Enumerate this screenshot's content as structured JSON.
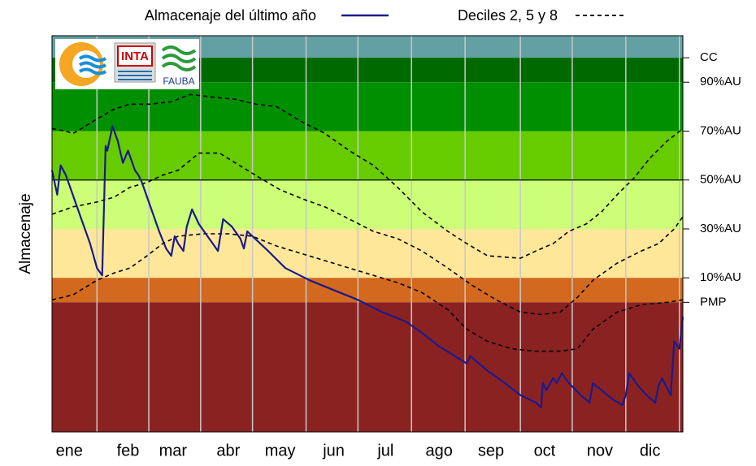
{
  "chart_data": {
    "type": "line",
    "ylabel": "Almacenaje",
    "xlim": [
      0,
      365
    ],
    "ylim": [
      -53,
      109
    ],
    "xticks": [
      {
        "value": 10,
        "label": "ene"
      },
      {
        "value": 44,
        "label": "feb"
      },
      {
        "value": 70,
        "label": "mar"
      },
      {
        "value": 102,
        "label": "abr"
      },
      {
        "value": 132,
        "label": "may"
      },
      {
        "value": 163,
        "label": "jun"
      },
      {
        "value": 193,
        "label": "jul"
      },
      {
        "value": 224,
        "label": "ago"
      },
      {
        "value": 254,
        "label": "sep"
      },
      {
        "value": 285,
        "label": "oct"
      },
      {
        "value": 317,
        "label": "nov"
      },
      {
        "value": 346,
        "label": "dic"
      }
    ],
    "xgrid": [
      26,
      56,
      86,
      116,
      147,
      177,
      208,
      239,
      271,
      301,
      332,
      363
    ],
    "yticks": [
      {
        "value": 100,
        "label": "CC"
      },
      {
        "value": 90,
        "label": "90%AU"
      },
      {
        "value": 70,
        "label": "70%AU"
      },
      {
        "value": 50,
        "label": "50%AU"
      },
      {
        "value": 30,
        "label": "30%AU"
      },
      {
        "value": 10,
        "label": "10%AU"
      },
      {
        "value": 0,
        "label": "PMP"
      }
    ],
    "reference_line": 50,
    "bands": [
      {
        "from": 100,
        "to": 109,
        "color": "#62a0a4"
      },
      {
        "from": 90,
        "to": 100,
        "color": "#006a00"
      },
      {
        "from": 70,
        "to": 90,
        "color": "#008f00"
      },
      {
        "from": 50,
        "to": 70,
        "color": "#66cc00"
      },
      {
        "from": 30,
        "to": 50,
        "color": "#ccff77"
      },
      {
        "from": 10,
        "to": 30,
        "color": "#ffe79a"
      },
      {
        "from": 0,
        "to": 10,
        "color": "#d2691e"
      },
      {
        "from": -53,
        "to": 0,
        "color": "#8b2222"
      }
    ],
    "logos": [
      "INTA",
      "FAUBA"
    ],
    "series": [
      {
        "name": "Almacenaje del último año",
        "color": "#1a1a8c",
        "x": [
          0,
          3,
          5,
          8,
          12,
          17,
          22,
          26,
          29,
          31,
          32,
          35,
          38,
          41,
          44,
          48,
          50,
          52,
          57,
          62,
          66,
          69,
          71,
          73,
          76,
          78,
          81,
          85,
          90,
          93,
          96,
          99,
          104,
          109,
          111,
          113,
          125,
          135,
          149,
          163,
          177,
          191,
          205,
          215,
          224,
          233,
          240,
          242,
          252,
          262,
          271,
          280,
          283,
          284,
          286,
          290,
          292,
          295,
          299,
          306,
          311,
          313,
          318,
          325,
          330,
          332,
          334,
          339,
          344,
          349,
          351,
          353,
          358,
          360,
          363,
          365
        ],
        "values": [
          54,
          44,
          56,
          52,
          44,
          34,
          24,
          14,
          11,
          64,
          62,
          72,
          66,
          57,
          62,
          54,
          52,
          49,
          39,
          29,
          22,
          19,
          27,
          24,
          21,
          31,
          38,
          32,
          27,
          24,
          21,
          34,
          31,
          26,
          22,
          29,
          21,
          14,
          9,
          5,
          1,
          -4,
          -8,
          -13,
          -18,
          -22,
          -25,
          -22,
          -28,
          -33,
          -38,
          -41,
          -43,
          -33,
          -36,
          -31,
          -33,
          -29,
          -33,
          -38,
          -41,
          -33,
          -36,
          -40,
          -42,
          -38,
          -29,
          -34,
          -38,
          -41,
          -34,
          -31,
          -38,
          -16,
          -19,
          -6
        ]
      }
    ],
    "deciles": {
      "name": "Deciles 2, 5 y 8",
      "color": "#000000",
      "lines": [
        {
          "x": [
            0,
            8,
            12,
            17,
            26,
            36,
            45,
            57,
            69,
            80,
            92,
            106,
            118,
            130,
            144,
            158,
            172,
            186,
            200,
            214,
            229,
            240,
            252,
            271,
            280,
            290,
            299,
            309,
            318,
            327,
            337,
            346,
            356,
            365
          ],
          "values": [
            71,
            70,
            69,
            71,
            75,
            79,
            81,
            81,
            82,
            85,
            84,
            83,
            81,
            80,
            74,
            69,
            62,
            56,
            47,
            37,
            29,
            24,
            19,
            18,
            21,
            24,
            29,
            32,
            37,
            44,
            51,
            59,
            66,
            71
          ]
        },
        {
          "x": [
            0,
            12,
            26,
            36,
            45,
            55,
            64,
            73,
            85,
            97,
            106,
            120,
            132,
            146,
            158,
            172,
            186,
            200,
            214,
            229,
            243,
            257,
            271,
            283,
            294,
            304,
            313,
            327,
            341,
            351,
            360,
            365
          ],
          "values": [
            36,
            39,
            41,
            43,
            47,
            49,
            52,
            54,
            61,
            61,
            57,
            51,
            46,
            42,
            39,
            34,
            29,
            26,
            21,
            14,
            7,
            1,
            -4,
            -5,
            -4,
            2,
            9,
            16,
            21,
            24,
            30,
            35
          ]
        },
        {
          "x": [
            0,
            12,
            26,
            36,
            45,
            55,
            64,
            73,
            87,
            102,
            116,
            130,
            144,
            158,
            172,
            186,
            200,
            214,
            229,
            240,
            252,
            266,
            280,
            294,
            304,
            313,
            327,
            341,
            356,
            365
          ],
          "values": [
            1,
            3,
            9,
            12,
            14,
            19,
            24,
            27,
            28,
            28,
            27,
            23,
            20,
            17,
            14,
            11,
            8,
            4,
            -3,
            -11,
            -16,
            -19,
            -20,
            -20,
            -19,
            -11,
            -4,
            -1,
            0,
            1
          ]
        }
      ]
    }
  }
}
